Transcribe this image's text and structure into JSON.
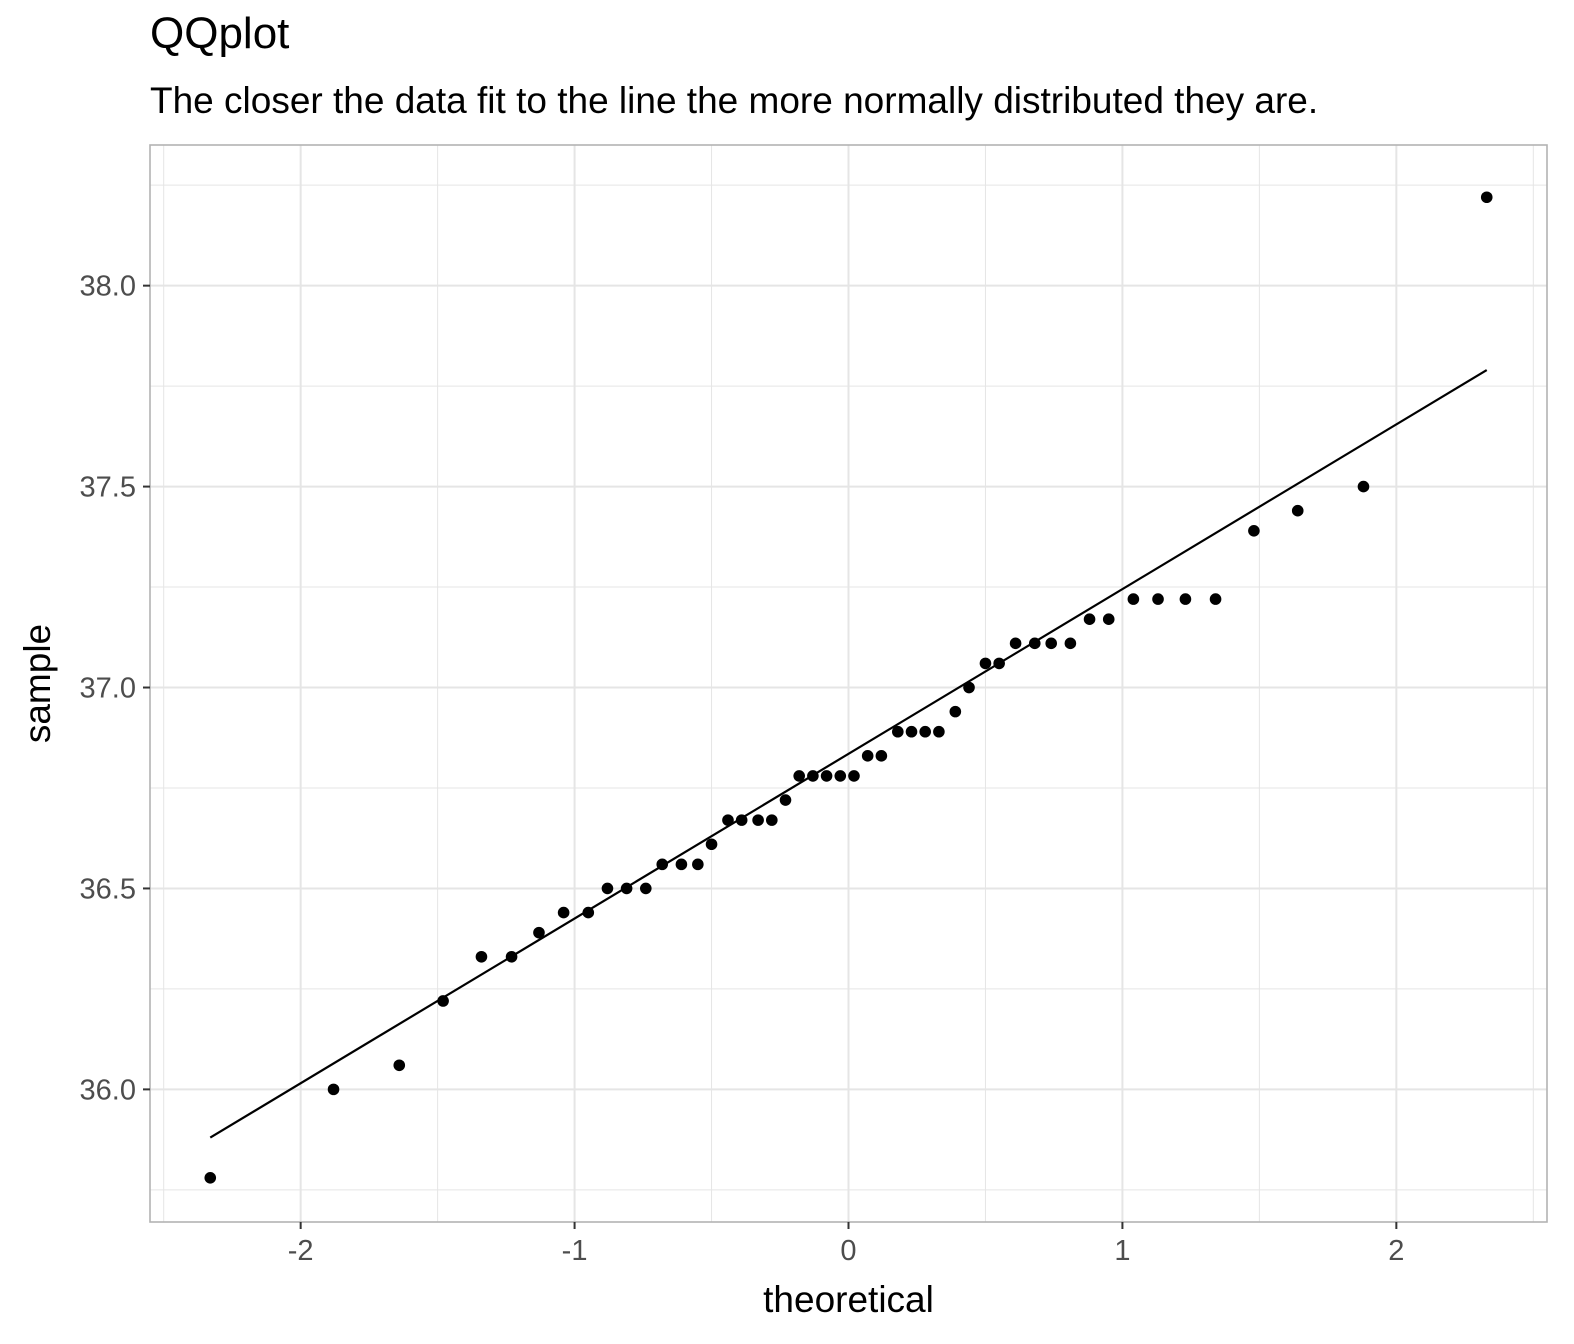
{
  "chart_data": {
    "type": "scatter",
    "title": "QQplot",
    "subtitle": "The closer the data fit to the line the more normally distributed they are.",
    "xlabel": "theoretical",
    "ylabel": "sample",
    "xlim": [
      -2.55,
      2.55
    ],
    "ylim": [
      35.67,
      38.35
    ],
    "x_ticks": [
      -2,
      -1,
      0,
      1,
      2
    ],
    "x_tick_labels": [
      "-2",
      "-1",
      "0",
      "1",
      "2"
    ],
    "y_ticks": [
      36.0,
      36.5,
      37.0,
      37.5,
      38.0
    ],
    "y_tick_labels": [
      "36.0",
      "36.5",
      "37.0",
      "37.5",
      "38.0"
    ],
    "grid": true,
    "legend": "none",
    "colors": {
      "points": "#000000",
      "line": "#000000",
      "grid": "#e5e5e5",
      "border": "#b3b3b3"
    },
    "series": [
      {
        "kind": "points",
        "x": [
          -2.33,
          -1.88,
          -1.64,
          -1.48,
          -1.34,
          -1.23,
          -1.13,
          -1.04,
          -0.95,
          -0.88,
          -0.81,
          -0.74,
          -0.68,
          -0.61,
          -0.55,
          -0.5,
          -0.44,
          -0.39,
          -0.33,
          -0.28,
          -0.23,
          -0.18,
          -0.13,
          -0.08,
          -0.03,
          0.02,
          0.07,
          0.12,
          0.18,
          0.23,
          0.28,
          0.33,
          0.39,
          0.44,
          0.5,
          0.55,
          0.61,
          0.68,
          0.74,
          0.81,
          0.88,
          0.95,
          1.04,
          1.13,
          1.23,
          1.34,
          1.48,
          1.64,
          1.88,
          2.33
        ],
        "y": [
          35.78,
          36.0,
          36.06,
          36.22,
          36.33,
          36.33,
          36.39,
          36.44,
          36.44,
          36.5,
          36.5,
          36.5,
          36.56,
          36.56,
          36.56,
          36.61,
          36.67,
          36.67,
          36.67,
          36.67,
          36.72,
          36.78,
          36.78,
          36.78,
          36.78,
          36.78,
          36.83,
          36.83,
          36.89,
          36.89,
          36.89,
          36.89,
          36.94,
          37.0,
          37.06,
          37.06,
          37.11,
          37.11,
          37.11,
          37.11,
          37.17,
          37.17,
          37.22,
          37.22,
          37.22,
          37.22,
          37.39,
          37.44,
          37.5,
          38.22
        ]
      },
      {
        "kind": "line",
        "x": [
          -2.33,
          2.33
        ],
        "y": [
          35.88,
          37.79
        ]
      }
    ]
  }
}
